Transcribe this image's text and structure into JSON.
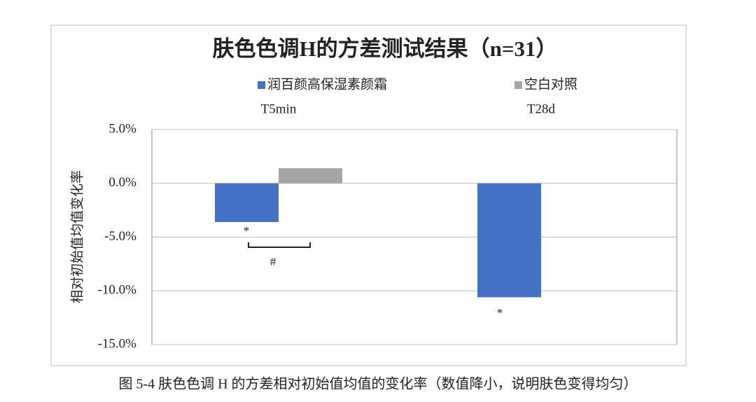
{
  "chart_data": {
    "type": "bar",
    "title": "肤色色调H的方差测试结果（n=31）",
    "y_label": "相对初始值均值变化率",
    "categories": [
      "T5min",
      "T28d"
    ],
    "series": [
      {
        "name": "润百颜高保湿素颜霜",
        "color": "#4472c4",
        "values": [
          -3.6,
          -10.6
        ]
      },
      {
        "name": "空白对照",
        "color": "#a5a5a5",
        "values": [
          1.4,
          null
        ]
      }
    ],
    "ylim": [
      -15,
      5
    ],
    "yticks": [
      {
        "value": -15,
        "label": "-15.0%"
      },
      {
        "value": -10,
        "label": "-10.0%"
      },
      {
        "value": -5,
        "label": "-5.0%"
      },
      {
        "value": 0,
        "label": "0.0%"
      },
      {
        "value": 5,
        "label": "5.0%"
      }
    ],
    "grid": true,
    "annotations": [
      "*",
      "#",
      "*"
    ],
    "caption": "图 5-4 肤色色调 H 的方差相对初始值均值的变化率（数值降小，说明肤色变得均匀）"
  }
}
